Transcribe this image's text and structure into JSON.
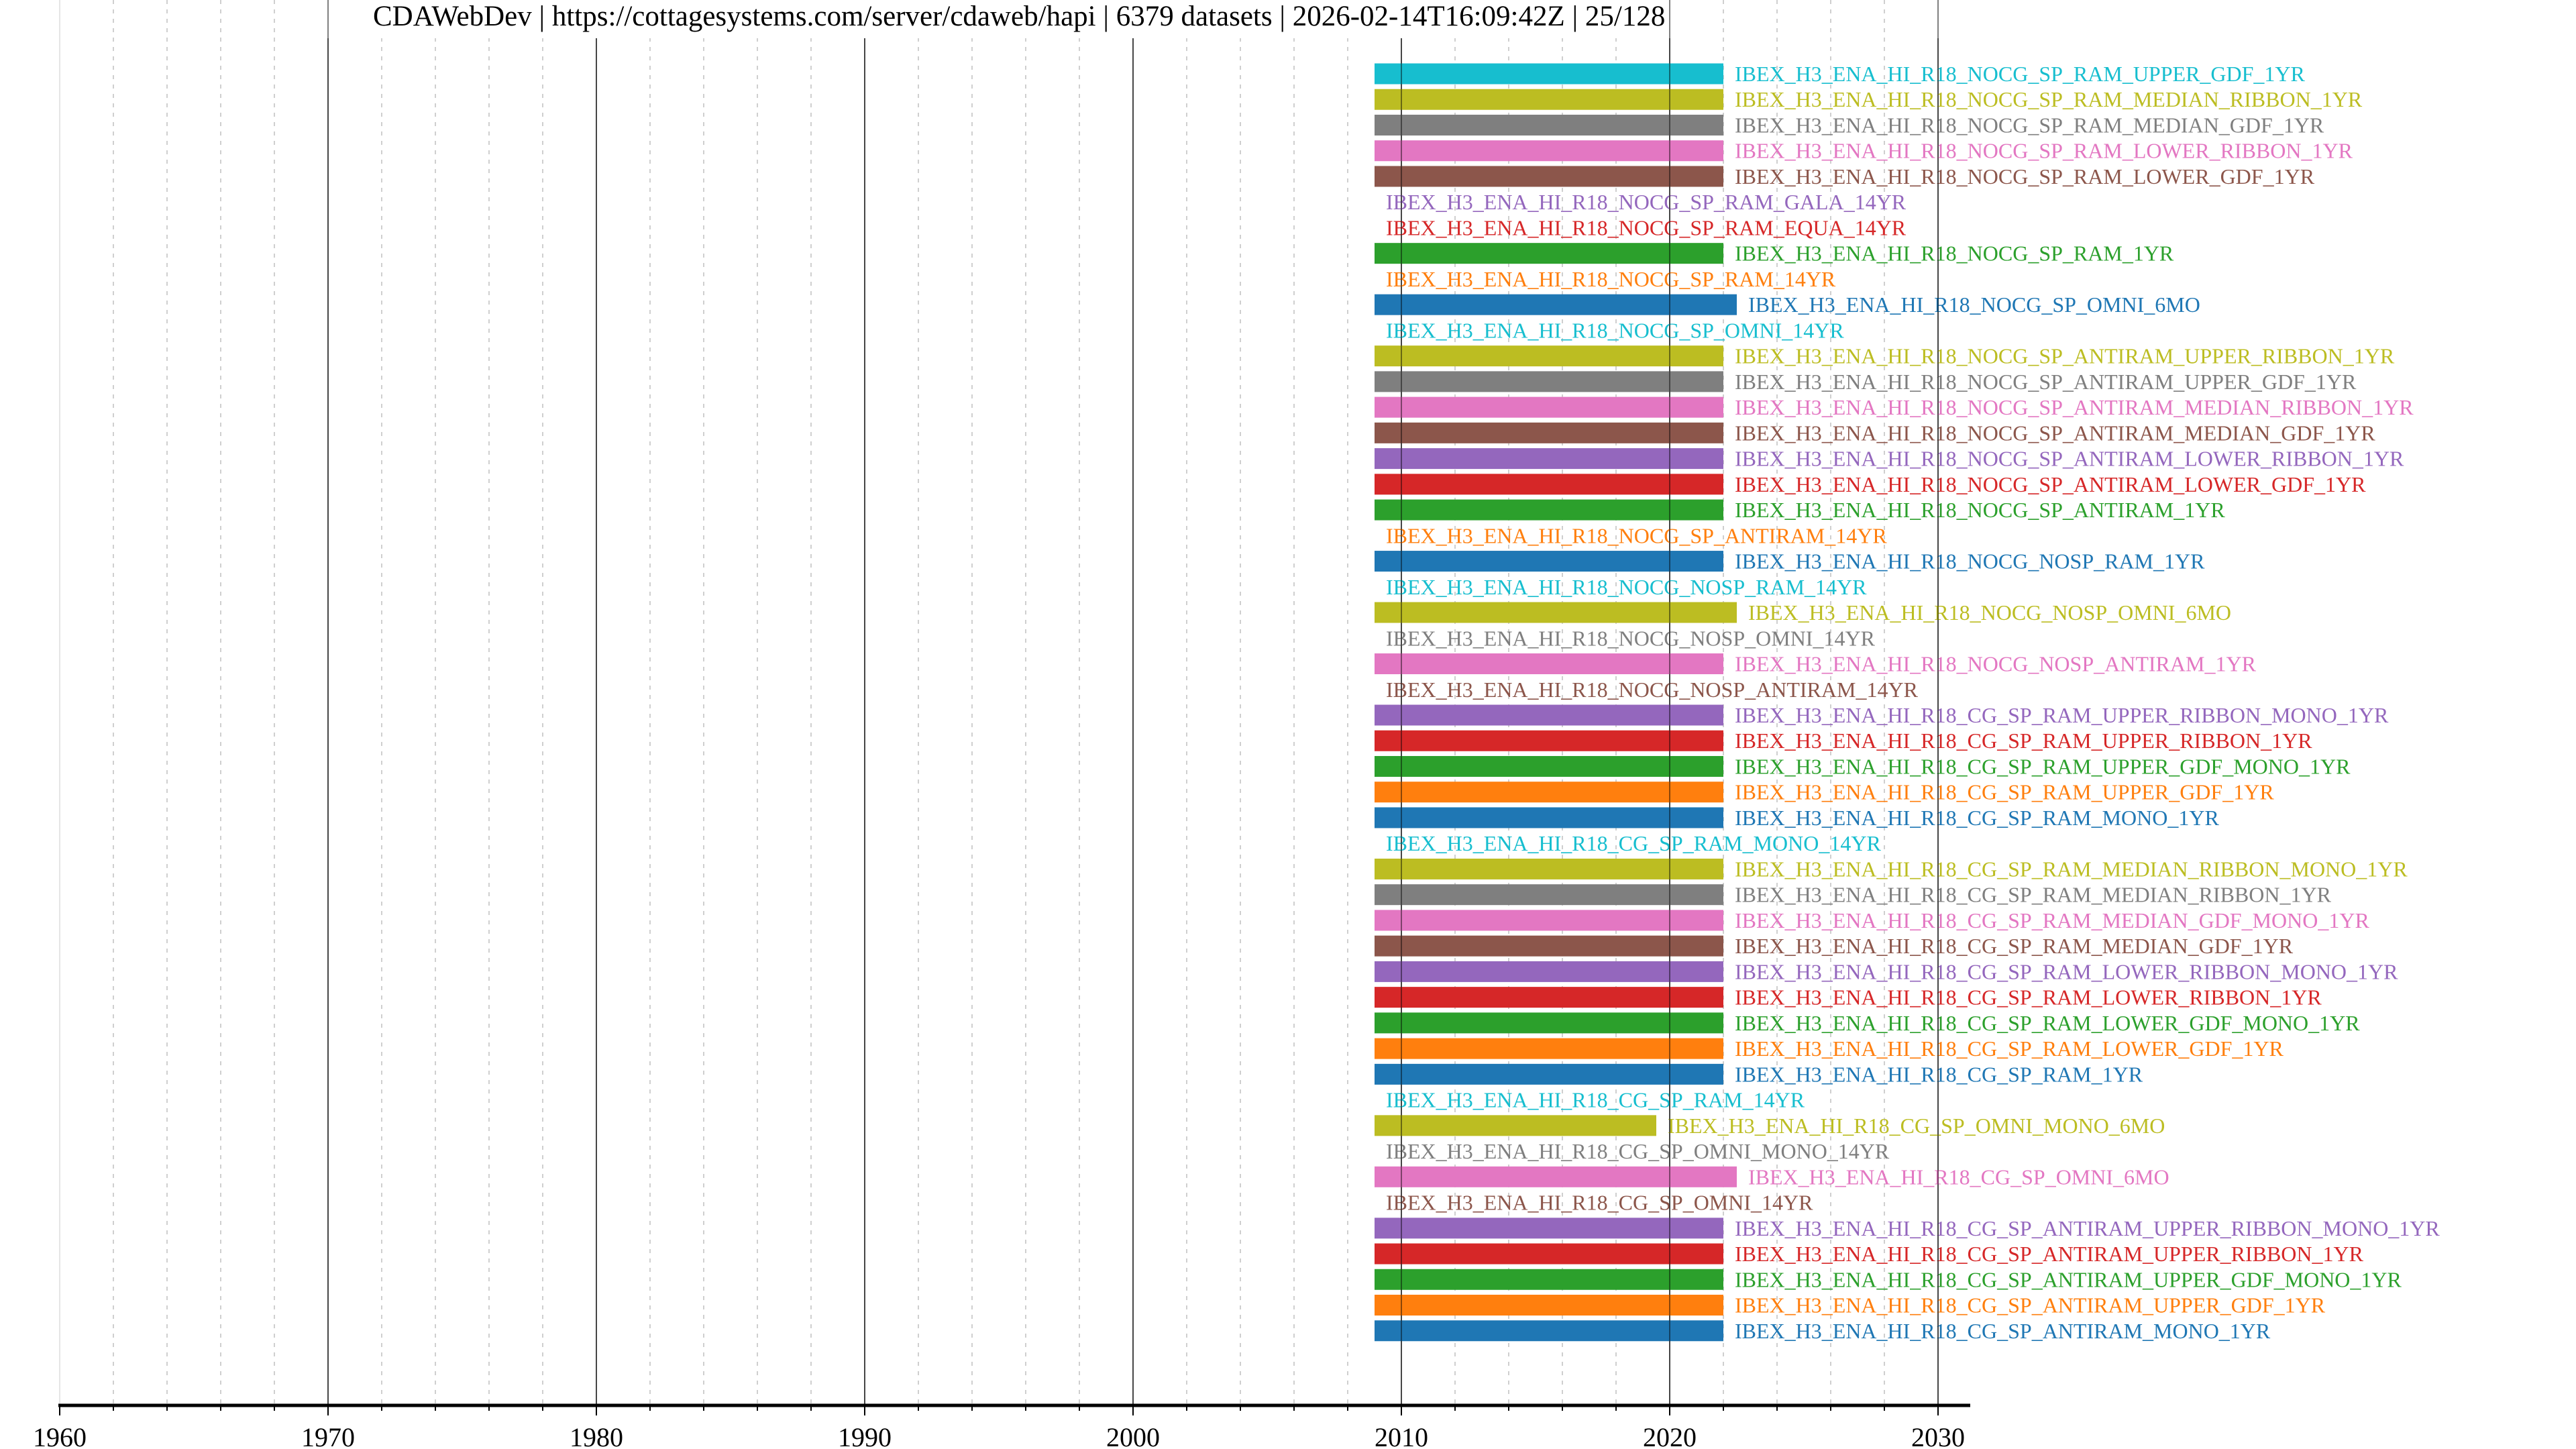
{
  "chart_data": {
    "type": "timeline-bar",
    "title": "CDAWebDev | https://cottagesystems.com/server/cdaweb/hapi | 6379 datasets | 2026-02-14T16:09:42Z | 25/128",
    "xlabel": "",
    "ylabel": "",
    "xlim": [
      1960,
      2031.2
    ],
    "xticks": [
      "1960",
      "1970",
      "1980",
      "1990",
      "2000",
      "2010",
      "2020",
      "2030"
    ],
    "grid": {
      "major_years": 10,
      "minor_years": 2
    },
    "colors": [
      "#1f77b4",
      "#ff7f0e",
      "#2ca02c",
      "#d62728",
      "#9467bd",
      "#8c564b",
      "#e377c2",
      "#7f7f7f",
      "#bcbd22",
      "#17becf"
    ],
    "rows": [
      {
        "label": "IBEX_H3_ENA_HI_R18_NOCG_SP_RAM_UPPER_GDF_1YR",
        "start": 2009,
        "end": 2022
      },
      {
        "label": "IBEX_H3_ENA_HI_R18_NOCG_SP_RAM_MEDIAN_RIBBON_1YR",
        "start": 2009,
        "end": 2022
      },
      {
        "label": "IBEX_H3_ENA_HI_R18_NOCG_SP_RAM_MEDIAN_GDF_1YR",
        "start": 2009,
        "end": 2022
      },
      {
        "label": "IBEX_H3_ENA_HI_R18_NOCG_SP_RAM_LOWER_RIBBON_1YR",
        "start": 2009,
        "end": 2022
      },
      {
        "label": "IBEX_H3_ENA_HI_R18_NOCG_SP_RAM_LOWER_GDF_1YR",
        "start": 2009,
        "end": 2022
      },
      {
        "label": "IBEX_H3_ENA_HI_R18_NOCG_SP_RAM_GALA_14YR",
        "start": 2009,
        "end": 2009
      },
      {
        "label": "IBEX_H3_ENA_HI_R18_NOCG_SP_RAM_EQUA_14YR",
        "start": 2009,
        "end": 2009
      },
      {
        "label": "IBEX_H3_ENA_HI_R18_NOCG_SP_RAM_1YR",
        "start": 2009,
        "end": 2022
      },
      {
        "label": "IBEX_H3_ENA_HI_R18_NOCG_SP_RAM_14YR",
        "start": 2009,
        "end": 2009
      },
      {
        "label": "IBEX_H3_ENA_HI_R18_NOCG_SP_OMNI_6MO",
        "start": 2009,
        "end": 2022.5
      },
      {
        "label": "IBEX_H3_ENA_HI_R18_NOCG_SP_OMNI_14YR",
        "start": 2009,
        "end": 2009
      },
      {
        "label": "IBEX_H3_ENA_HI_R18_NOCG_SP_ANTIRAM_UPPER_RIBBON_1YR",
        "start": 2009,
        "end": 2022
      },
      {
        "label": "IBEX_H3_ENA_HI_R18_NOCG_SP_ANTIRAM_UPPER_GDF_1YR",
        "start": 2009,
        "end": 2022
      },
      {
        "label": "IBEX_H3_ENA_HI_R18_NOCG_SP_ANTIRAM_MEDIAN_RIBBON_1YR",
        "start": 2009,
        "end": 2022
      },
      {
        "label": "IBEX_H3_ENA_HI_R18_NOCG_SP_ANTIRAM_MEDIAN_GDF_1YR",
        "start": 2009,
        "end": 2022
      },
      {
        "label": "IBEX_H3_ENA_HI_R18_NOCG_SP_ANTIRAM_LOWER_RIBBON_1YR",
        "start": 2009,
        "end": 2022
      },
      {
        "label": "IBEX_H3_ENA_HI_R18_NOCG_SP_ANTIRAM_LOWER_GDF_1YR",
        "start": 2009,
        "end": 2022
      },
      {
        "label": "IBEX_H3_ENA_HI_R18_NOCG_SP_ANTIRAM_1YR",
        "start": 2009,
        "end": 2022
      },
      {
        "label": "IBEX_H3_ENA_HI_R18_NOCG_SP_ANTIRAM_14YR",
        "start": 2009,
        "end": 2009
      },
      {
        "label": "IBEX_H3_ENA_HI_R18_NOCG_NOSP_RAM_1YR",
        "start": 2009,
        "end": 2022
      },
      {
        "label": "IBEX_H3_ENA_HI_R18_NOCG_NOSP_RAM_14YR",
        "start": 2009,
        "end": 2009
      },
      {
        "label": "IBEX_H3_ENA_HI_R18_NOCG_NOSP_OMNI_6MO",
        "start": 2009,
        "end": 2022.5
      },
      {
        "label": "IBEX_H3_ENA_HI_R18_NOCG_NOSP_OMNI_14YR",
        "start": 2009,
        "end": 2009
      },
      {
        "label": "IBEX_H3_ENA_HI_R18_NOCG_NOSP_ANTIRAM_1YR",
        "start": 2009,
        "end": 2022
      },
      {
        "label": "IBEX_H3_ENA_HI_R18_NOCG_NOSP_ANTIRAM_14YR",
        "start": 2009,
        "end": 2009
      },
      {
        "label": "IBEX_H3_ENA_HI_R18_CG_SP_RAM_UPPER_RIBBON_MONO_1YR",
        "start": 2009,
        "end": 2022
      },
      {
        "label": "IBEX_H3_ENA_HI_R18_CG_SP_RAM_UPPER_RIBBON_1YR",
        "start": 2009,
        "end": 2022
      },
      {
        "label": "IBEX_H3_ENA_HI_R18_CG_SP_RAM_UPPER_GDF_MONO_1YR",
        "start": 2009,
        "end": 2022
      },
      {
        "label": "IBEX_H3_ENA_HI_R18_CG_SP_RAM_UPPER_GDF_1YR",
        "start": 2009,
        "end": 2022
      },
      {
        "label": "IBEX_H3_ENA_HI_R18_CG_SP_RAM_MONO_1YR",
        "start": 2009,
        "end": 2022
      },
      {
        "label": "IBEX_H3_ENA_HI_R18_CG_SP_RAM_MONO_14YR",
        "start": 2009,
        "end": 2009
      },
      {
        "label": "IBEX_H3_ENA_HI_R18_CG_SP_RAM_MEDIAN_RIBBON_MONO_1YR",
        "start": 2009,
        "end": 2022
      },
      {
        "label": "IBEX_H3_ENA_HI_R18_CG_SP_RAM_MEDIAN_RIBBON_1YR",
        "start": 2009,
        "end": 2022
      },
      {
        "label": "IBEX_H3_ENA_HI_R18_CG_SP_RAM_MEDIAN_GDF_MONO_1YR",
        "start": 2009,
        "end": 2022
      },
      {
        "label": "IBEX_H3_ENA_HI_R18_CG_SP_RAM_MEDIAN_GDF_1YR",
        "start": 2009,
        "end": 2022
      },
      {
        "label": "IBEX_H3_ENA_HI_R18_CG_SP_RAM_LOWER_RIBBON_MONO_1YR",
        "start": 2009,
        "end": 2022
      },
      {
        "label": "IBEX_H3_ENA_HI_R18_CG_SP_RAM_LOWER_RIBBON_1YR",
        "start": 2009,
        "end": 2022
      },
      {
        "label": "IBEX_H3_ENA_HI_R18_CG_SP_RAM_LOWER_GDF_MONO_1YR",
        "start": 2009,
        "end": 2022
      },
      {
        "label": "IBEX_H3_ENA_HI_R18_CG_SP_RAM_LOWER_GDF_1YR",
        "start": 2009,
        "end": 2022
      },
      {
        "label": "IBEX_H3_ENA_HI_R18_CG_SP_RAM_1YR",
        "start": 2009,
        "end": 2022
      },
      {
        "label": "IBEX_H3_ENA_HI_R18_CG_SP_RAM_14YR",
        "start": 2009,
        "end": 2009
      },
      {
        "label": "IBEX_H3_ENA_HI_R18_CG_SP_OMNI_MONO_6MO",
        "start": 2009,
        "end": 2019.5
      },
      {
        "label": "IBEX_H3_ENA_HI_R18_CG_SP_OMNI_MONO_14YR",
        "start": 2009,
        "end": 2009
      },
      {
        "label": "IBEX_H3_ENA_HI_R18_CG_SP_OMNI_6MO",
        "start": 2009,
        "end": 2022.5
      },
      {
        "label": "IBEX_H3_ENA_HI_R18_CG_SP_OMNI_14YR",
        "start": 2009,
        "end": 2009
      },
      {
        "label": "IBEX_H3_ENA_HI_R18_CG_SP_ANTIRAM_UPPER_RIBBON_MONO_1YR",
        "start": 2009,
        "end": 2022
      },
      {
        "label": "IBEX_H3_ENA_HI_R18_CG_SP_ANTIRAM_UPPER_RIBBON_1YR",
        "start": 2009,
        "end": 2022
      },
      {
        "label": "IBEX_H3_ENA_HI_R18_CG_SP_ANTIRAM_UPPER_GDF_MONO_1YR",
        "start": 2009,
        "end": 2022
      },
      {
        "label": "IBEX_H3_ENA_HI_R18_CG_SP_ANTIRAM_UPPER_GDF_1YR",
        "start": 2009,
        "end": 2022
      },
      {
        "label": "IBEX_H3_ENA_HI_R18_CG_SP_ANTIRAM_MONO_1YR",
        "start": 2009,
        "end": 2022
      }
    ]
  }
}
